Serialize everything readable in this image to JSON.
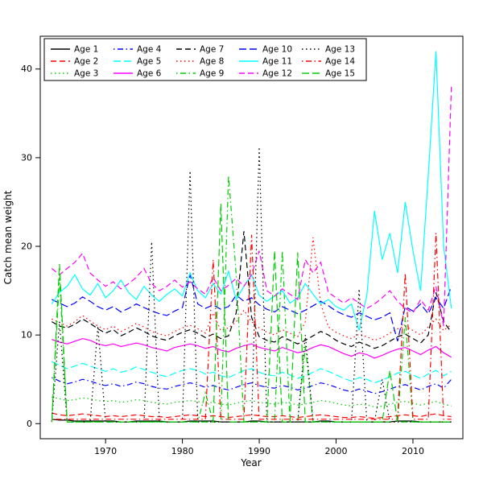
{
  "chart_data": {
    "type": "line",
    "title": "",
    "xlabel": "Year",
    "ylabel": "Catch mean weight",
    "grid": false,
    "legend_position": "top-left",
    "legend_columns": 5,
    "xlim": [
      1961.5,
      2016.5
    ],
    "ylim": [
      -1.7,
      43.7
    ],
    "x_ticks": [
      1970,
      1980,
      1990,
      2000,
      2010
    ],
    "y_ticks": [
      0,
      10,
      20,
      30,
      40
    ],
    "x": [
      1963,
      1964,
      1965,
      1966,
      1967,
      1968,
      1969,
      1970,
      1971,
      1972,
      1973,
      1974,
      1975,
      1976,
      1977,
      1978,
      1979,
      1980,
      1981,
      1982,
      1983,
      1984,
      1985,
      1986,
      1987,
      1988,
      1989,
      1990,
      1991,
      1992,
      1993,
      1994,
      1995,
      1996,
      1997,
      1998,
      1999,
      2000,
      2001,
      2002,
      2003,
      2004,
      2005,
      2006,
      2007,
      2008,
      2009,
      2010,
      2011,
      2012,
      2013,
      2014,
      2015
    ],
    "series": [
      {
        "name": "Age 1",
        "color": "#000000",
        "linetype": "solid",
        "values": [
          0.5,
          0.4,
          0.4,
          0.3,
          0.3,
          0.3,
          0.3,
          0.3,
          0.3,
          0.2,
          0.2,
          0.3,
          0.3,
          0.3,
          0.3,
          0.2,
          0.2,
          0.2,
          0.3,
          0.3,
          0.3,
          0.3,
          0.2,
          0.2,
          0.2,
          0.2,
          0.3,
          0.3,
          0.2,
          0.2,
          0.2,
          0.2,
          0.2,
          0.2,
          0.2,
          0.3,
          0.3,
          0.2,
          0.2,
          0.2,
          0.2,
          0.2,
          0.2,
          0.2,
          0.2,
          0.3,
          0.3,
          0.3,
          0.2,
          0.2,
          0.2,
          0.2,
          0.2
        ]
      },
      {
        "name": "Age 2",
        "color": "#FF0000",
        "linetype": "dashed",
        "values": [
          1.2,
          1.0,
          0.9,
          1.0,
          1.1,
          1.0,
          0.9,
          0.8,
          0.9,
          0.8,
          0.9,
          1.0,
          0.9,
          0.8,
          0.8,
          0.7,
          0.8,
          0.9,
          1.0,
          0.9,
          0.8,
          0.9,
          0.8,
          0.7,
          0.8,
          0.9,
          1.0,
          0.9,
          0.8,
          0.8,
          0.9,
          0.8,
          0.7,
          0.8,
          0.9,
          1.0,
          0.9,
          0.8,
          0.7,
          0.7,
          0.8,
          0.7,
          0.6,
          0.7,
          0.8,
          0.9,
          1.0,
          0.9,
          0.8,
          1.0,
          1.1,
          0.9,
          0.8
        ]
      },
      {
        "name": "Age 3",
        "color": "#00CD00",
        "linetype": "dotted",
        "values": [
          3.0,
          2.8,
          2.6,
          2.7,
          2.9,
          2.8,
          2.6,
          2.5,
          2.6,
          2.4,
          2.5,
          2.7,
          2.6,
          2.4,
          2.3,
          2.2,
          2.4,
          2.5,
          2.6,
          2.5,
          2.3,
          2.4,
          2.2,
          2.1,
          2.3,
          2.5,
          2.6,
          2.4,
          2.3,
          2.2,
          2.4,
          2.3,
          2.1,
          2.2,
          2.4,
          2.6,
          2.5,
          2.3,
          2.1,
          2.0,
          2.2,
          2.1,
          1.9,
          2.0,
          2.2,
          2.4,
          2.5,
          2.3,
          2.1,
          2.3,
          2.5,
          2.2,
          2.0
        ]
      },
      {
        "name": "Age 4",
        "color": "#0000FF",
        "linetype": "dotdash",
        "values": [
          5.2,
          4.8,
          4.5,
          4.7,
          5.0,
          4.8,
          4.5,
          4.3,
          4.5,
          4.2,
          4.4,
          4.7,
          4.5,
          4.2,
          4.0,
          3.9,
          4.2,
          4.4,
          4.6,
          4.4,
          4.1,
          4.3,
          4.0,
          3.8,
          4.1,
          4.4,
          4.6,
          4.3,
          4.1,
          4.0,
          4.3,
          4.1,
          3.8,
          4.0,
          4.3,
          4.6,
          4.4,
          4.1,
          3.8,
          3.6,
          3.9,
          3.7,
          3.4,
          3.6,
          3.9,
          4.2,
          4.4,
          4.1,
          3.8,
          4.2,
          4.5,
          4.0,
          5.0
        ]
      },
      {
        "name": "Age 5",
        "color": "#00FFFF",
        "linetype": "longdash",
        "values": [
          7.0,
          6.6,
          6.2,
          6.5,
          6.8,
          6.5,
          6.2,
          5.9,
          6.2,
          5.8,
          6.0,
          6.4,
          6.1,
          5.8,
          5.5,
          5.3,
          5.7,
          6.0,
          6.2,
          6.0,
          5.6,
          5.8,
          5.4,
          5.2,
          5.6,
          6.0,
          6.2,
          5.8,
          5.5,
          5.4,
          5.8,
          5.5,
          5.1,
          5.4,
          5.8,
          6.2,
          5.9,
          5.5,
          5.1,
          4.8,
          5.2,
          5.0,
          4.6,
          4.9,
          5.3,
          5.7,
          5.9,
          5.5,
          5.1,
          5.6,
          6.0,
          5.4,
          5.9
        ]
      },
      {
        "name": "Age 6",
        "color": "#FF00FF",
        "linetype": "solid",
        "values": [
          9.5,
          9.2,
          9.0,
          9.3,
          9.6,
          9.4,
          9.0,
          8.8,
          9.0,
          8.7,
          8.9,
          9.1,
          8.9,
          8.6,
          8.4,
          8.2,
          8.6,
          8.8,
          9.0,
          8.8,
          8.5,
          8.7,
          8.3,
          8.1,
          8.5,
          8.8,
          9.0,
          8.6,
          8.4,
          8.2,
          8.6,
          8.3,
          8.0,
          8.2,
          8.6,
          8.9,
          8.7,
          8.3,
          7.9,
          7.6,
          8.0,
          7.8,
          7.4,
          7.7,
          8.1,
          8.4,
          8.6,
          8.2,
          7.8,
          8.3,
          8.7,
          8.0,
          7.5
        ]
      },
      {
        "name": "Age 7",
        "color": "#000000",
        "linetype": "dashed",
        "values": [
          11.5,
          11.0,
          10.8,
          11.2,
          11.8,
          11.3,
          10.7,
          10.2,
          10.6,
          9.9,
          10.3,
          10.8,
          10.4,
          9.9,
          9.6,
          9.4,
          9.9,
          10.3,
          10.6,
          10.2,
          9.7,
          10.1,
          9.6,
          9.9,
          12.5,
          21.7,
          12.0,
          9.8,
          9.4,
          9.2,
          9.8,
          9.4,
          9.0,
          9.4,
          9.9,
          10.4,
          10.0,
          9.4,
          9.0,
          8.7,
          9.2,
          8.9,
          8.5,
          8.8,
          9.3,
          9.8,
          10.1,
          9.6,
          9.1,
          10.0,
          14.8,
          11.5,
          10.3
        ]
      },
      {
        "name": "Age 8",
        "color": "#FF0000",
        "linetype": "dotted",
        "values": [
          11.8,
          11.4,
          11.0,
          11.5,
          12.2,
          11.6,
          11.0,
          10.6,
          11.0,
          10.4,
          10.8,
          11.3,
          10.9,
          10.4,
          10.1,
          9.9,
          10.4,
          10.8,
          11.1,
          10.7,
          10.2,
          12.5,
          10.5,
          10.8,
          11.5,
          12.8,
          11.5,
          10.8,
          10.3,
          10.0,
          10.6,
          10.2,
          9.8,
          11.5,
          21.0,
          13.5,
          10.9,
          10.3,
          9.9,
          9.6,
          10.1,
          9.8,
          9.4,
          9.7,
          10.2,
          10.7,
          11.0,
          10.5,
          10.0,
          10.9,
          11.8,
          10.5,
          11.2
        ]
      },
      {
        "name": "Age 9",
        "color": "#00CD00",
        "linetype": "dotdash",
        "values": [
          0.2,
          16.5,
          0.2,
          0.2,
          0.2,
          0.2,
          0.2,
          0.2,
          0.2,
          0.2,
          0.2,
          0.2,
          0.2,
          0.2,
          0.2,
          0.2,
          0.2,
          0.2,
          0.2,
          0.2,
          3.5,
          0.2,
          0.2,
          28.0,
          16.8,
          0.2,
          0.2,
          0.2,
          0.2,
          0.2,
          19.5,
          0.2,
          0.2,
          8.8,
          0.2,
          0.2,
          0.2,
          0.2,
          0.2,
          0.2,
          0.2,
          0.2,
          0.2,
          0.2,
          0.2,
          0.2,
          12.0,
          0.2,
          0.2,
          0.2,
          0.2,
          0.2,
          0.2
        ]
      },
      {
        "name": "Age 10",
        "color": "#0000FF",
        "linetype": "longdash",
        "values": [
          14.0,
          13.6,
          13.2,
          13.6,
          14.3,
          13.8,
          13.2,
          12.8,
          13.2,
          12.6,
          13.0,
          13.5,
          13.1,
          12.7,
          12.4,
          12.2,
          12.7,
          13.1,
          16.8,
          13.5,
          13.0,
          13.4,
          12.9,
          13.2,
          14.5,
          13.8,
          14.2,
          13.4,
          12.9,
          12.6,
          13.2,
          12.8,
          12.4,
          12.8,
          13.3,
          13.8,
          13.3,
          12.7,
          12.3,
          12.0,
          12.5,
          12.1,
          11.7,
          12.0,
          12.5,
          9.3,
          13.2,
          12.7,
          13.5,
          12.4,
          14.2,
          13.0,
          15.5
        ]
      },
      {
        "name": "Age 11",
        "color": "#00FFFF",
        "linetype": "solid",
        "values": [
          13.5,
          14.8,
          15.5,
          16.8,
          15.2,
          14.5,
          15.8,
          14.2,
          15.0,
          16.2,
          14.8,
          14.0,
          15.5,
          14.5,
          13.8,
          14.6,
          15.2,
          14.4,
          17.0,
          15.0,
          14.2,
          15.8,
          14.6,
          17.2,
          14.0,
          15.5,
          16.8,
          14.5,
          13.8,
          14.4,
          15.0,
          13.6,
          14.2,
          15.8,
          14.6,
          13.5,
          14.0,
          13.2,
          12.8,
          13.5,
          10.5,
          14.5,
          24.0,
          18.5,
          21.5,
          17.0,
          25.0,
          19.5,
          15.0,
          28.0,
          42.0,
          20.0,
          13.0
        ]
      },
      {
        "name": "Age 12",
        "color": "#FF00FF",
        "linetype": "dashed",
        "values": [
          17.5,
          16.8,
          17.5,
          18.2,
          19.2,
          17.0,
          16.2,
          15.5,
          16.0,
          15.2,
          15.8,
          16.5,
          17.5,
          15.8,
          15.0,
          15.5,
          16.2,
          15.4,
          16.0,
          15.2,
          14.6,
          16.5,
          15.0,
          15.6,
          16.4,
          15.5,
          16.8,
          19.5,
          15.0,
          14.4,
          15.2,
          14.6,
          14.0,
          18.5,
          17.0,
          18.2,
          14.8,
          14.2,
          13.6,
          14.2,
          13.6,
          13.0,
          13.5,
          14.2,
          15.0,
          13.8,
          13.0,
          12.5,
          14.0,
          12.8,
          15.5,
          11.0,
          38.0
        ]
      },
      {
        "name": "Age 13",
        "color": "#000000",
        "linetype": "dotted",
        "values": [
          0.2,
          11.5,
          0.2,
          0.2,
          0.2,
          0.2,
          11.0,
          0.2,
          0.2,
          0.2,
          0.2,
          0.2,
          0.2,
          20.5,
          0.2,
          0.2,
          0.2,
          0.2,
          28.5,
          0.2,
          0.2,
          0.2,
          0.2,
          0.2,
          0.2,
          0.2,
          0.2,
          31.2,
          0.2,
          0.2,
          0.2,
          0.2,
          0.2,
          10.0,
          0.2,
          0.2,
          0.2,
          0.2,
          0.2,
          0.2,
          15.2,
          0.2,
          0.2,
          5.0,
          0.2,
          0.2,
          0.2,
          0.2,
          0.2,
          0.2,
          0.2,
          0.2,
          0.2
        ]
      },
      {
        "name": "Age 14",
        "color": "#FF0000",
        "linetype": "dotdash",
        "values": [
          0.5,
          0.5,
          0.5,
          0.5,
          0.5,
          0.5,
          0.5,
          0.5,
          0.5,
          0.5,
          0.5,
          0.5,
          0.5,
          0.5,
          0.5,
          0.5,
          0.5,
          0.5,
          0.5,
          0.5,
          0.5,
          18.5,
          0.5,
          0.5,
          0.5,
          0.5,
          21.3,
          0.5,
          0.5,
          0.5,
          0.5,
          0.5,
          0.5,
          0.5,
          0.5,
          0.5,
          0.5,
          0.5,
          0.5,
          0.5,
          0.5,
          0.5,
          0.5,
          0.5,
          0.5,
          0.5,
          17.0,
          0.5,
          0.5,
          0.5,
          21.5,
          0.5,
          0.5
        ]
      },
      {
        "name": "Age 15",
        "color": "#00CD00",
        "linetype": "longdash",
        "values": [
          0.2,
          18.0,
          0.2,
          0.2,
          0.2,
          0.2,
          0.2,
          0.2,
          0.2,
          0.2,
          0.2,
          0.2,
          0.2,
          0.2,
          0.2,
          0.2,
          0.2,
          0.2,
          0.2,
          0.2,
          0.2,
          0.2,
          24.8,
          0.2,
          0.2,
          0.2,
          0.2,
          0.2,
          0.2,
          19.5,
          0.2,
          0.2,
          19.3,
          0.2,
          0.2,
          0.2,
          0.2,
          0.2,
          0.2,
          0.2,
          0.2,
          0.2,
          0.2,
          0.2,
          6.0,
          0.2,
          0.2,
          0.2,
          0.2,
          0.2,
          0.2,
          0.2,
          0.2
        ]
      }
    ]
  }
}
